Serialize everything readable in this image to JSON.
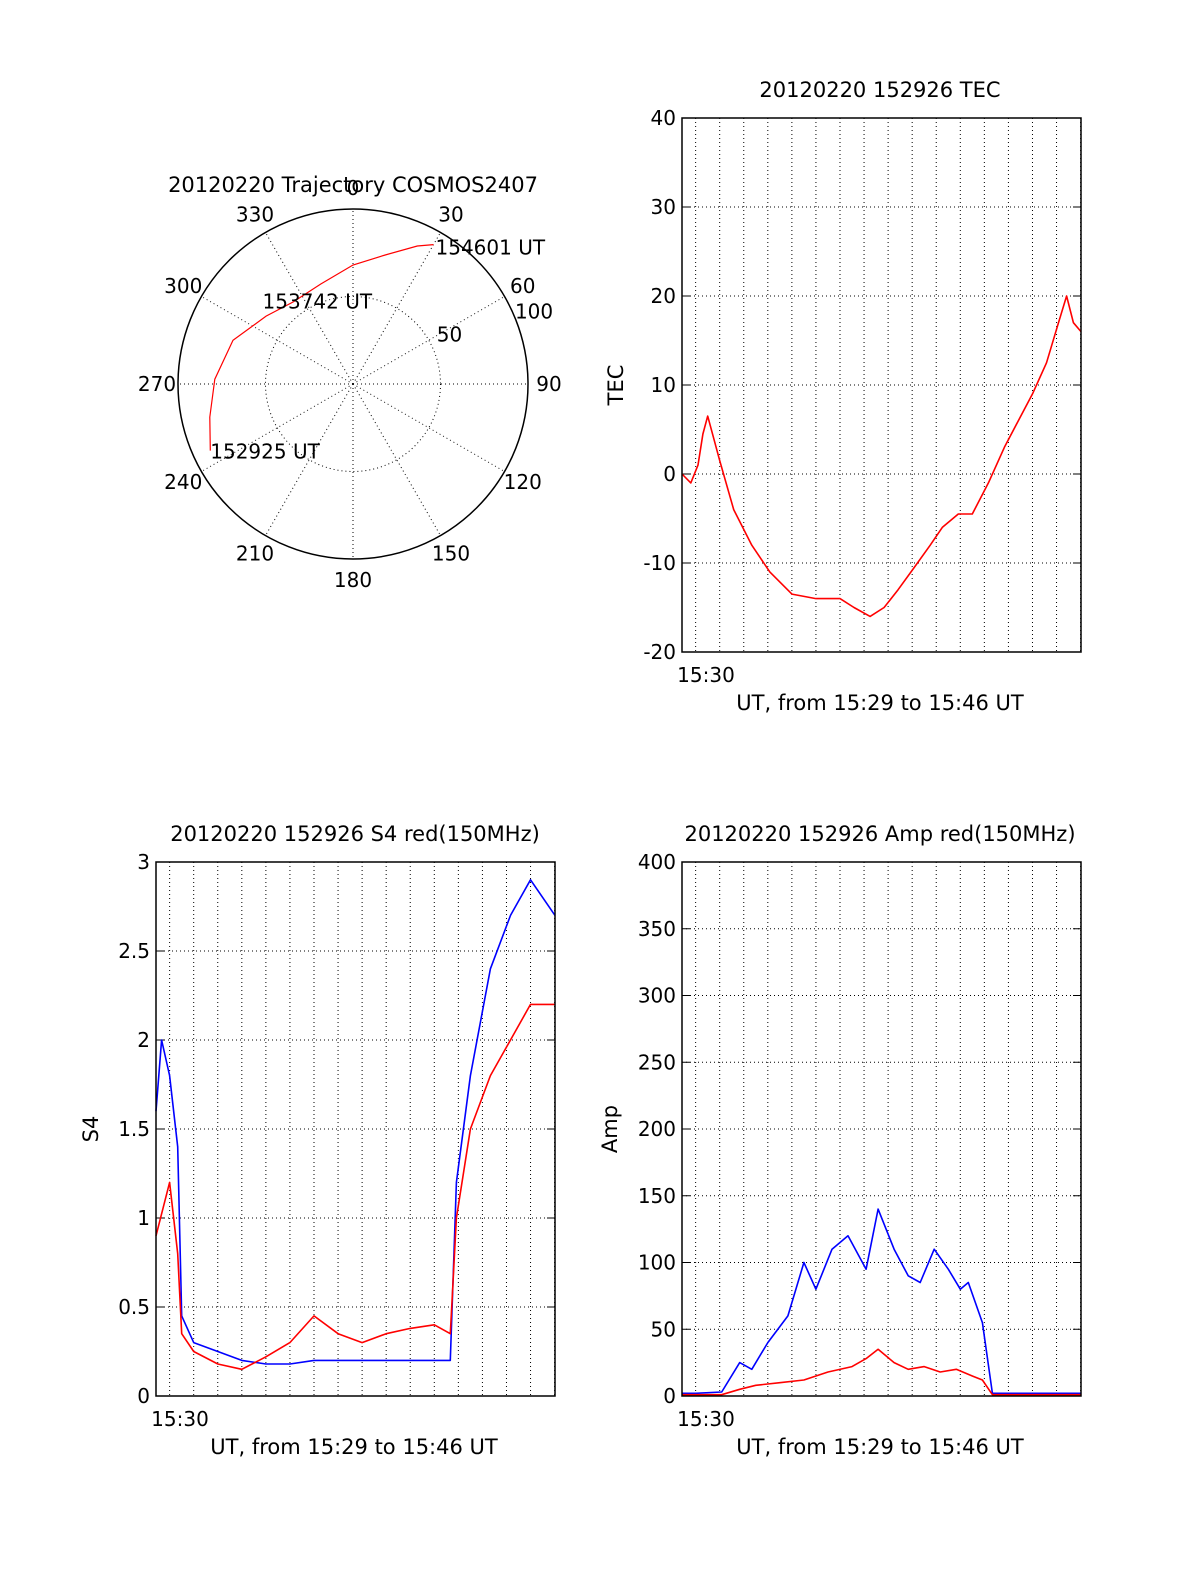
{
  "chart_data": [
    {
      "type": "polar",
      "title": "20120220 Trajectory COSMOS2407",
      "angle_labels": [
        "0",
        "30",
        "60",
        "90",
        "120",
        "150",
        "180",
        "210",
        "240",
        "270",
        "300",
        "330"
      ],
      "radius_labels": [
        "50",
        "100"
      ],
      "rlim": [
        0,
        100
      ],
      "grid": true,
      "series": [
        {
          "color": "#ff0000",
          "points": [
            {
              "az": 245,
              "r": 90
            },
            {
              "az": 257,
              "r": 84
            },
            {
              "az": 272,
              "r": 79
            },
            {
              "az": 290,
              "r": 73
            },
            {
              "az": 308,
              "r": 63
            },
            {
              "az": 324,
              "r": 58
            },
            {
              "az": 342,
              "r": 60
            },
            {
              "az": 0,
              "r": 68
            },
            {
              "az": 14,
              "r": 76
            },
            {
              "az": 25,
              "r": 87
            },
            {
              "az": 30,
              "r": 92
            }
          ]
        }
      ],
      "annotations": [
        {
          "text": "154601 UT",
          "az": 30,
          "r": 92
        },
        {
          "text": "153742 UT",
          "az": 335,
          "r": 52
        },
        {
          "text": "152925 UT",
          "az": 245,
          "r": 90
        }
      ]
    },
    {
      "type": "line",
      "title": "20120220 152926 TEC",
      "xlabel": "UT, from 15:29 to 15:46 UT",
      "ylabel": "TEC",
      "xlim": [
        "15:29:26",
        "15:46:01"
      ],
      "x_tick_labels": [
        "15:30"
      ],
      "ylim": [
        -20,
        40
      ],
      "y_ticks": [
        -20,
        -10,
        0,
        10,
        20,
        30,
        40
      ],
      "grid": true,
      "series": [
        {
          "color": "#ff0000",
          "x": [
            "15:29:26",
            "15:29:48",
            "15:30:06",
            "15:30:18",
            "15:30:30",
            "15:31:00",
            "15:31:35",
            "15:32:20",
            "15:33:05",
            "15:34:00",
            "15:35:00",
            "15:36:00",
            "15:36:35",
            "15:37:15",
            "15:37:50",
            "15:38:25",
            "15:39:05",
            "15:39:45",
            "15:40:15",
            "15:40:55",
            "15:41:30",
            "15:42:10",
            "15:42:50",
            "15:43:25",
            "15:44:00",
            "15:44:35",
            "15:45:05",
            "15:45:25",
            "15:45:42",
            "15:46:01"
          ],
          "y": [
            0,
            -1,
            1,
            4.5,
            6.5,
            1.5,
            -4,
            -8,
            -11,
            -13.5,
            -14,
            -14,
            -15,
            -16,
            -15,
            -13,
            -10.5,
            -8,
            -6,
            -4.5,
            -4.5,
            -1,
            3,
            6,
            9,
            12.5,
            17,
            20,
            17,
            16
          ]
        }
      ]
    },
    {
      "type": "line",
      "title": "20120220 152926 S4 red(150MHz)",
      "xlabel": "UT, from 15:29 to 15:46 UT",
      "ylabel": "S4",
      "xlim": [
        "15:29:26",
        "15:46:01"
      ],
      "x_tick_labels": [
        "15:30"
      ],
      "ylim": [
        0,
        3
      ],
      "y_ticks": [
        0,
        0.5,
        1,
        1.5,
        2,
        2.5,
        3
      ],
      "grid": true,
      "series": [
        {
          "color": "#0000ff",
          "x": [
            "15:29:26",
            "15:29:40",
            "15:30:00",
            "15:30:20",
            "15:30:30",
            "15:31:00",
            "15:32:00",
            "15:33:00",
            "15:34:00",
            "15:35:00",
            "15:36:00",
            "15:37:00",
            "15:38:00",
            "15:39:00",
            "15:40:00",
            "15:41:00",
            "15:41:40",
            "15:41:55",
            "15:42:30",
            "15:43:20",
            "15:44:10",
            "15:45:00",
            "15:46:01"
          ],
          "y": [
            1.6,
            2.0,
            1.8,
            1.4,
            0.45,
            0.3,
            0.25,
            0.2,
            0.18,
            0.18,
            0.2,
            0.2,
            0.2,
            0.2,
            0.2,
            0.2,
            0.2,
            1.2,
            1.8,
            2.4,
            2.7,
            2.9,
            2.7
          ]
        },
        {
          "color": "#ff0000",
          "x": [
            "15:29:26",
            "15:30:00",
            "15:30:20",
            "15:30:30",
            "15:31:00",
            "15:32:00",
            "15:33:00",
            "15:34:00",
            "15:35:00",
            "15:36:00",
            "15:37:00",
            "15:38:00",
            "15:39:00",
            "15:40:00",
            "15:41:00",
            "15:41:40",
            "15:41:55",
            "15:42:30",
            "15:43:20",
            "15:44:10",
            "15:45:00",
            "15:46:01"
          ],
          "y": [
            0.9,
            1.2,
            0.8,
            0.35,
            0.25,
            0.18,
            0.15,
            0.22,
            0.3,
            0.45,
            0.35,
            0.3,
            0.35,
            0.38,
            0.4,
            0.35,
            1.0,
            1.5,
            1.8,
            2.0,
            2.2,
            2.2
          ]
        }
      ]
    },
    {
      "type": "line",
      "title": "20120220 152926 Amp red(150MHz)",
      "xlabel": "UT, from 15:29 to 15:46 UT",
      "ylabel": "Amp",
      "xlim": [
        "15:29:26",
        "15:46:01"
      ],
      "x_tick_labels": [
        "15:30"
      ],
      "ylim": [
        0,
        400
      ],
      "y_ticks": [
        0,
        50,
        100,
        150,
        200,
        250,
        300,
        350,
        400
      ],
      "grid": true,
      "series": [
        {
          "color": "#0000ff",
          "x": [
            "15:29:26",
            "15:30:00",
            "15:31:05",
            "15:31:50",
            "15:32:20",
            "15:33:00",
            "15:33:50",
            "15:34:30",
            "15:35:00",
            "15:35:40",
            "15:36:20",
            "15:37:05",
            "15:37:35",
            "15:38:15",
            "15:38:50",
            "15:39:20",
            "15:39:55",
            "15:40:30",
            "15:41:00",
            "15:41:20",
            "15:41:55",
            "15:42:20",
            "15:43:00",
            "15:44:00",
            "15:45:00",
            "15:46:01"
          ],
          "y": [
            2,
            2,
            3,
            25,
            20,
            40,
            60,
            100,
            80,
            110,
            120,
            95,
            140,
            110,
            90,
            85,
            110,
            95,
            80,
            85,
            55,
            2,
            2,
            2,
            2,
            2
          ]
        },
        {
          "color": "#ff0000",
          "x": [
            "15:29:26",
            "15:31:05",
            "15:31:50",
            "15:32:30",
            "15:33:30",
            "15:34:30",
            "15:35:30",
            "15:36:30",
            "15:37:05",
            "15:37:35",
            "15:38:15",
            "15:38:50",
            "15:39:30",
            "15:40:10",
            "15:40:50",
            "15:41:30",
            "15:41:55",
            "15:42:20",
            "15:46:01"
          ],
          "y": [
            1,
            1,
            5,
            8,
            10,
            12,
            18,
            22,
            28,
            35,
            25,
            20,
            22,
            18,
            20,
            15,
            12,
            1,
            1
          ]
        }
      ]
    }
  ]
}
